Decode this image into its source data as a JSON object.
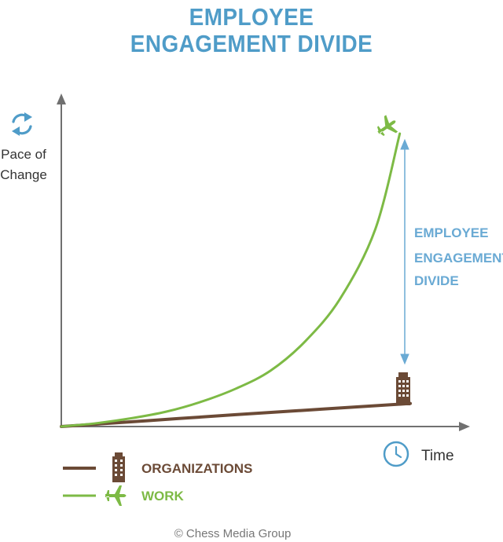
{
  "title_lines": [
    "EMPLOYEE",
    "ENGAGEMENT DIVIDE"
  ],
  "y_axis_label_lines": [
    "Pace of",
    "Change"
  ],
  "x_axis_label": "Time",
  "divide_label_lines": [
    "EMPLOYEE",
    "ENGAGEMENT",
    "DIVIDE"
  ],
  "legend": [
    {
      "label": "ORGANIZATIONS",
      "color": "#6b4a36",
      "icon": "building-icon"
    },
    {
      "label": "WORK",
      "color": "#7dba45",
      "icon": "airplane-icon"
    }
  ],
  "footer": "© Chess Media Group",
  "colors": {
    "title": "#4f9cc8",
    "axis": "#707070",
    "organizations": "#6b4a36",
    "work": "#7dba45",
    "divide": "#6aaad4"
  },
  "chart_data": {
    "type": "line",
    "title": "EMPLOYEE ENGAGEMENT DIVIDE",
    "xlabel": "Time",
    "ylabel": "Pace of Change",
    "xlim": [
      0,
      1
    ],
    "ylim": [
      0,
      1
    ],
    "grid": false,
    "legend_position": "bottom-left",
    "series": [
      {
        "name": "ORGANIZATIONS",
        "x": [
          0,
          0.25,
          0.5,
          0.75,
          1.0
        ],
        "y": [
          0,
          0.018,
          0.036,
          0.053,
          0.07
        ]
      },
      {
        "name": "WORK",
        "x": [
          0,
          0.1,
          0.2,
          0.3,
          0.4,
          0.5,
          0.6,
          0.7,
          0.8,
          0.9,
          0.97
        ],
        "y": [
          0,
          0.01,
          0.025,
          0.045,
          0.075,
          0.115,
          0.17,
          0.26,
          0.39,
          0.6,
          0.89
        ]
      }
    ]
  }
}
